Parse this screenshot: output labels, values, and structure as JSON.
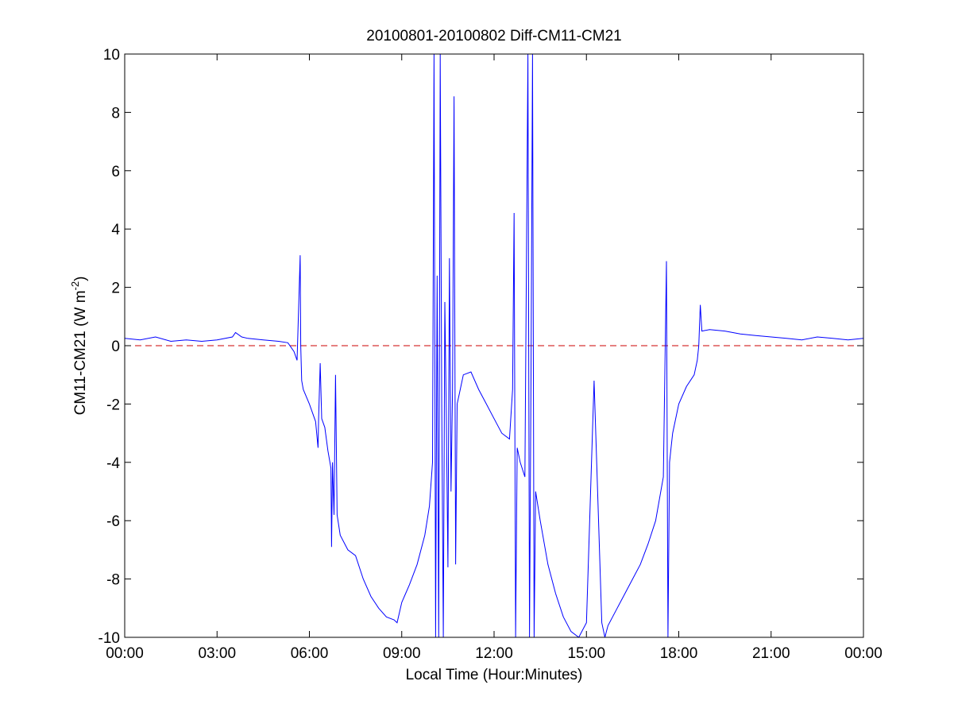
{
  "chart_data": {
    "type": "line",
    "title": "20100801-20100802 Diff-CM11-CM21",
    "xlabel": "Local Time (Hour:Minutes)",
    "ylabel": {
      "base": "CM11-CM21 (W m",
      "superscript": "-2",
      "suffix": ")"
    },
    "x_unit": "hours",
    "xlim": [
      0,
      24
    ],
    "ylim": [
      -10,
      10
    ],
    "x_ticks": [
      0,
      3,
      6,
      9,
      12,
      15,
      18,
      21,
      24
    ],
    "x_tick_labels": [
      "00:00",
      "03:00",
      "06:00",
      "09:00",
      "12:00",
      "15:00",
      "18:00",
      "21:00",
      "00:00"
    ],
    "y_ticks": [
      -10,
      -8,
      -6,
      -4,
      -2,
      0,
      2,
      4,
      6,
      8,
      10
    ],
    "y_tick_labels": [
      "-10",
      "-8",
      "-6",
      "-4",
      "-2",
      "0",
      "2",
      "4",
      "6",
      "8",
      "10"
    ],
    "grid": false,
    "reference_line": {
      "y": 0,
      "style": "dashed",
      "color": "#cc0000"
    },
    "series": [
      {
        "color": "#0000ff",
        "x": [
          0.0,
          0.5,
          1.0,
          1.5,
          2.0,
          2.5,
          3.0,
          3.5,
          3.6,
          3.8,
          4.0,
          4.5,
          5.0,
          5.3,
          5.5,
          5.6,
          5.7,
          5.72,
          5.75,
          5.8,
          6.0,
          6.2,
          6.28,
          6.3,
          6.35,
          6.4,
          6.5,
          6.6,
          6.7,
          6.72,
          6.75,
          6.8,
          6.85,
          6.9,
          7.0,
          7.25,
          7.5,
          7.75,
          8.0,
          8.25,
          8.5,
          8.75,
          8.85,
          9.0,
          9.25,
          9.5,
          9.75,
          9.9,
          10.0,
          10.05,
          10.1,
          10.15,
          10.2,
          10.25,
          10.3,
          10.35,
          10.4,
          10.45,
          10.5,
          10.55,
          10.6,
          10.65,
          10.7,
          10.75,
          10.8,
          10.9,
          11.0,
          11.25,
          11.5,
          11.75,
          12.0,
          12.25,
          12.5,
          12.6,
          12.65,
          12.7,
          12.75,
          12.85,
          13.0,
          13.1,
          13.15,
          13.2,
          13.25,
          13.3,
          13.35,
          13.5,
          13.75,
          14.0,
          14.25,
          14.5,
          14.75,
          15.0,
          15.25,
          15.5,
          15.6,
          15.65,
          15.7,
          16.0,
          16.25,
          16.5,
          16.75,
          17.0,
          17.25,
          17.5,
          17.6,
          17.65,
          17.7,
          17.75,
          17.8,
          18.0,
          18.25,
          18.5,
          18.6,
          18.65,
          18.7,
          18.75,
          19.0,
          19.5,
          20.0,
          20.5,
          21.0,
          21.5,
          22.0,
          22.5,
          23.0,
          23.5,
          24.0
        ],
        "y": [
          0.25,
          0.2,
          0.3,
          0.15,
          0.2,
          0.15,
          0.2,
          0.3,
          0.45,
          0.3,
          0.25,
          0.2,
          0.15,
          0.1,
          -0.2,
          -0.5,
          3.1,
          0.0,
          -1.2,
          -1.5,
          -2.0,
          -2.6,
          -3.5,
          -2.5,
          -0.6,
          -2.5,
          -2.8,
          -3.6,
          -4.2,
          -6.9,
          -4.0,
          -5.8,
          -1.0,
          -5.8,
          -6.5,
          -7.0,
          -7.2,
          -8.0,
          -8.6,
          -9.0,
          -9.3,
          -9.4,
          -9.5,
          -8.8,
          -8.2,
          -7.5,
          -6.5,
          -5.5,
          -4.0,
          10.0,
          -10.0,
          2.4,
          -10.0,
          10.0,
          -2.0,
          -10.0,
          1.5,
          -2.5,
          -7.6,
          3.0,
          -5.0,
          -1.5,
          8.55,
          -7.5,
          -2.0,
          -1.5,
          -1.0,
          -0.9,
          -1.5,
          -2.0,
          -2.5,
          -3.0,
          -3.2,
          -1.5,
          4.55,
          -10.0,
          -3.5,
          -4.0,
          -4.5,
          10.0,
          -10.0,
          -1.0,
          10.0,
          -10.0,
          -5.0,
          -6.0,
          -7.5,
          -8.5,
          -9.3,
          -9.8,
          -10.0,
          -9.5,
          -1.2,
          -9.5,
          -10.0,
          -9.8,
          -9.6,
          -9.0,
          -8.5,
          -8.0,
          -7.5,
          -6.8,
          -6.0,
          -4.5,
          2.9,
          -10.0,
          -4.0,
          -3.5,
          -3.0,
          -2.0,
          -1.4,
          -1.0,
          -0.5,
          0.0,
          1.4,
          0.5,
          0.55,
          0.5,
          0.4,
          0.35,
          0.3,
          0.25,
          0.2,
          0.3,
          0.25,
          0.2,
          0.25
        ]
      }
    ]
  }
}
